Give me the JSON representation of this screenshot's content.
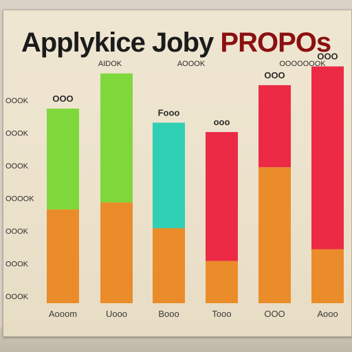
{
  "title_part1": "Applykice Joby ",
  "title_part2": "PROPOs",
  "header_labels": [
    "AIDOK",
    "AOOOK",
    "OOOOOOOK"
  ],
  "colors": {
    "green": "#7fd83b",
    "teal": "#2fcfb3",
    "red": "#ec2a45",
    "orange": "#ea8c2a"
  },
  "chart_data": {
    "type": "bar",
    "stacked": true,
    "title": "Applykice Joby PROPOs",
    "y_ticks": [
      "OOOK",
      "OOOK",
      "OOOK",
      "OOOOK",
      "OOOK",
      "OOOK",
      "OOOK"
    ],
    "categories": [
      "Aooom",
      "Uooo",
      "Booo",
      "Tooo",
      "OOO",
      "Aooo"
    ],
    "bar_labels": [
      "OOO",
      "",
      "Fooo",
      "ooo",
      "OOO",
      "OOO"
    ],
    "ylim": [
      0,
      100
    ],
    "series": [
      {
        "values": [
          40,
          43,
          32,
          18,
          58,
          23
        ],
        "color": "orange"
      },
      {
        "values": [
          43,
          55,
          45,
          55,
          35,
          78
        ],
        "color": "mixed"
      }
    ],
    "top_colors": [
      "green",
      "green",
      "teal",
      "red",
      "red",
      "red"
    ]
  }
}
